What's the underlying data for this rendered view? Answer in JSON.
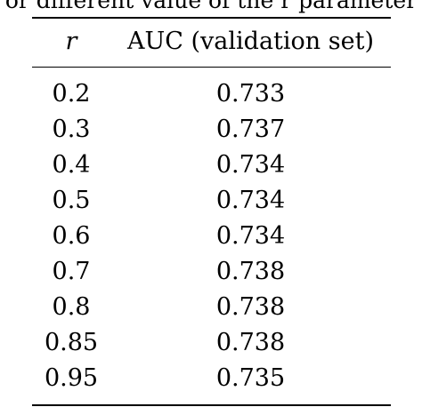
{
  "caption": "or different value of the r parameter",
  "table": {
    "headers": [
      "r",
      "AUC (validation set)"
    ],
    "rows": [
      {
        "r": "0.2",
        "auc": "0.733"
      },
      {
        "r": "0.3",
        "auc": "0.737"
      },
      {
        "r": "0.4",
        "auc": "0.734"
      },
      {
        "r": "0.5",
        "auc": "0.734"
      },
      {
        "r": "0.6",
        "auc": "0.734"
      },
      {
        "r": "0.7",
        "auc": "0.738"
      },
      {
        "r": "0.8",
        "auc": "0.738"
      },
      {
        "r": "0.85",
        "auc": "0.738"
      },
      {
        "r": "0.95",
        "auc": "0.735"
      }
    ]
  }
}
